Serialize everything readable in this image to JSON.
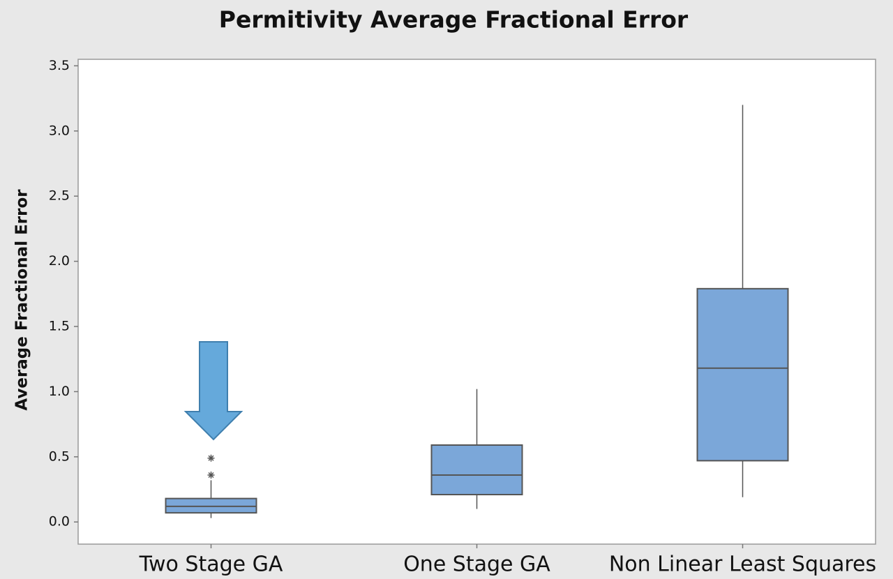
{
  "chart_data": {
    "type": "box",
    "title": "Permitivity Average Fractional Error",
    "y_label": "Average Fractional Error",
    "categories": [
      "Two Stage GA",
      "One Stage GA",
      "Non Linear Least Squares"
    ],
    "boxes": [
      {
        "whislo": 0.03,
        "q1": 0.07,
        "med": 0.12,
        "q3": 0.18,
        "whishi": 0.32,
        "fliers": [
          0.36,
          0.49
        ]
      },
      {
        "whislo": 0.1,
        "q1": 0.21,
        "med": 0.36,
        "q3": 0.59,
        "whishi": 1.02,
        "fliers": []
      },
      {
        "whislo": 0.19,
        "q1": 0.47,
        "med": 1.18,
        "q3": 1.79,
        "whishi": 3.2,
        "fliers": []
      }
    ],
    "color": "#7ba7d9",
    "ylim": [
      -0.17,
      3.55
    ],
    "yticks": [
      {
        "value": 0,
        "label": "0.0"
      },
      0.5,
      {
        "value": 1,
        "label": "1.0"
      },
      1.5,
      {
        "value": 2,
        "label": "2.0"
      },
      2.5,
      {
        "value": 3,
        "label": "3.0"
      },
      3.5
    ]
  }
}
